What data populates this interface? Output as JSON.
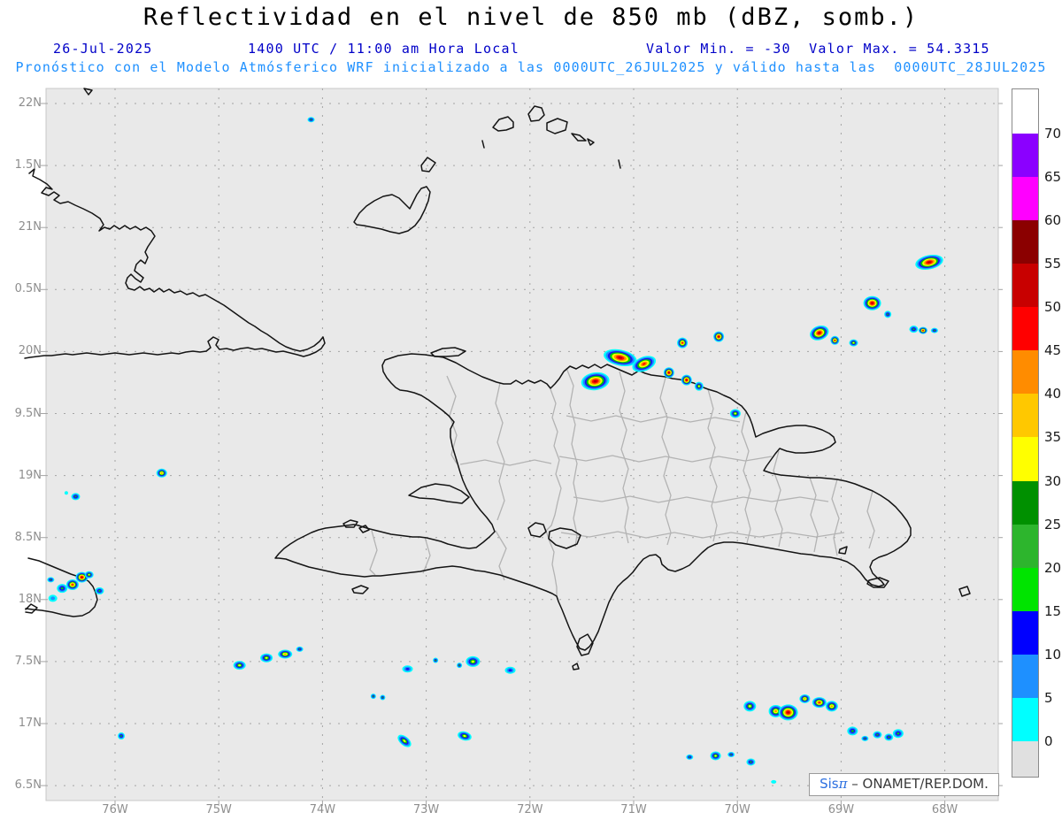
{
  "header": {
    "title": "Reflectividad en el nivel de 850 mb (dBZ, somb.)",
    "date": "26-Jul-2025",
    "time": "1400 UTC / 11:00 am Hora Local",
    "minmax": "Valor Min. = -30  Valor Max. = 54.3315",
    "forecast_line": "Pronóstico con el Modelo Atmósferico WRF inicializado a las 0000UTC_26JUL2025 y válido hasta las  0000UTC_28JUL2025"
  },
  "watermark": {
    "brand": "Sis",
    "pi": "π",
    "org": " – ONAMET/REP.DOM."
  },
  "chart_data": {
    "type": "heatmap",
    "title": "Reflectividad en el nivel de 850 mb (dBZ, somb.)",
    "units": "dBZ",
    "level": "850 mb",
    "value_min": -30,
    "value_max": 54.3315,
    "x_axis": {
      "values": [
        76,
        75,
        74,
        73,
        72,
        71,
        70,
        69,
        68
      ],
      "labels": [
        "76W",
        "75W",
        "74W",
        "73W",
        "72W",
        "71W",
        "70W",
        "69W",
        "68W"
      ]
    },
    "y_axis": {
      "values": [
        22,
        21.5,
        21,
        20.5,
        20,
        19.5,
        19,
        18.5,
        18,
        17.5,
        17,
        16.5
      ],
      "labels": [
        "22N",
        "1.5N",
        "21N",
        "0.5N",
        "20N",
        "9.5N",
        "19N",
        "8.5N",
        "18N",
        "7.5N",
        "17N",
        "6.5N"
      ]
    },
    "colorbar": {
      "tick_labels": [
        "70",
        "65",
        "60",
        "55",
        "50",
        "45",
        "40",
        "35",
        "30",
        "25",
        "20",
        "15",
        "10",
        "5",
        "0"
      ],
      "top_color": "#FFFFFF",
      "bottom_color": "#E0E0E0",
      "segment_colors_top_to_bottom": [
        "#8B00FF",
        "#FF00FF",
        "#8B0000",
        "#C80000",
        "#FF0000",
        "#FF8C00",
        "#FFC800",
        "#FFFF00",
        "#009000",
        "#2DB52D",
        "#00E400",
        "#0000FF",
        "#1E90FF",
        "#00FFFF"
      ]
    },
    "grid": {
      "lat_step_deg": 0.5,
      "lon_step_deg": 1,
      "style": "dashed-gray"
    },
    "cells_format": [
      "lon_w",
      "lat_n",
      "dbz",
      "rx_px",
      "ry_px",
      "rot_deg"
    ],
    "cells": [
      [
        74.11,
        21.87,
        18,
        4,
        3,
        0
      ],
      [
        68.15,
        20.72,
        52,
        16,
        8,
        -12
      ],
      [
        68.7,
        20.39,
        52,
        10,
        8,
        0
      ],
      [
        68.55,
        20.3,
        20,
        4,
        4,
        0
      ],
      [
        69.21,
        20.15,
        52,
        11,
        8,
        -20
      ],
      [
        69.06,
        20.09,
        47,
        5,
        5,
        0
      ],
      [
        68.88,
        20.07,
        33,
        5,
        4,
        0
      ],
      [
        68.3,
        20.18,
        25,
        5,
        4,
        0
      ],
      [
        68.21,
        20.17,
        47,
        5,
        4,
        0
      ],
      [
        68.1,
        20.17,
        22,
        4,
        3,
        0
      ],
      [
        71.13,
        19.95,
        52,
        19,
        9,
        12
      ],
      [
        70.9,
        19.9,
        47,
        14,
        8,
        -22
      ],
      [
        71.37,
        19.76,
        52,
        16,
        10,
        -8
      ],
      [
        70.66,
        19.83,
        50,
        6,
        6,
        0
      ],
      [
        70.49,
        19.77,
        50,
        6,
        6,
        0
      ],
      [
        70.37,
        19.72,
        33,
        5,
        5,
        0
      ],
      [
        70.18,
        20.12,
        50,
        6,
        6,
        0
      ],
      [
        70.53,
        20.07,
        45,
        6,
        6,
        0
      ],
      [
        70.02,
        19.5,
        33,
        6,
        5,
        0
      ],
      [
        75.55,
        19.02,
        42,
        6,
        5,
        0
      ],
      [
        76.38,
        18.83,
        25,
        5,
        4,
        0
      ],
      [
        76.47,
        18.86,
        5,
        2,
        2,
        0
      ],
      [
        76.32,
        18.18,
        50,
        7,
        6,
        0
      ],
      [
        76.41,
        18.12,
        45,
        7,
        6,
        0
      ],
      [
        76.51,
        18.09,
        25,
        6,
        5,
        0
      ],
      [
        76.6,
        18.01,
        10,
        5,
        4,
        0
      ],
      [
        76.25,
        18.2,
        33,
        5,
        4,
        0
      ],
      [
        76.15,
        18.07,
        20,
        5,
        4,
        0
      ],
      [
        76.62,
        18.16,
        20,
        4,
        3,
        0
      ],
      [
        74.8,
        17.47,
        33,
        7,
        5,
        0
      ],
      [
        74.54,
        17.53,
        33,
        7,
        5,
        0
      ],
      [
        74.36,
        17.56,
        42,
        8,
        5,
        0
      ],
      [
        74.22,
        17.6,
        20,
        4,
        3,
        0
      ],
      [
        73.18,
        17.44,
        14,
        6,
        4,
        0
      ],
      [
        72.91,
        17.51,
        18,
        3,
        3,
        0
      ],
      [
        72.68,
        17.47,
        18,
        3,
        3,
        0
      ],
      [
        72.55,
        17.5,
        33,
        8,
        6,
        0
      ],
      [
        72.19,
        17.43,
        14,
        6,
        4,
        0
      ],
      [
        73.51,
        17.22,
        18,
        3,
        3,
        0
      ],
      [
        73.42,
        17.21,
        18,
        3,
        3,
        0
      ],
      [
        73.21,
        16.86,
        30,
        9,
        5,
        40
      ],
      [
        72.63,
        16.9,
        33,
        8,
        5,
        15
      ],
      [
        75.94,
        16.9,
        20,
        4,
        4,
        0
      ],
      [
        69.88,
        17.14,
        33,
        7,
        6,
        0
      ],
      [
        69.63,
        17.1,
        42,
        8,
        7,
        0
      ],
      [
        69.51,
        17.09,
        52,
        11,
        9,
        0
      ],
      [
        69.35,
        17.2,
        42,
        6,
        5,
        0
      ],
      [
        69.21,
        17.17,
        47,
        8,
        6,
        0
      ],
      [
        69.09,
        17.14,
        40,
        7,
        6,
        0
      ],
      [
        68.89,
        16.94,
        22,
        6,
        5,
        0
      ],
      [
        68.77,
        16.88,
        20,
        4,
        3,
        0
      ],
      [
        68.65,
        16.91,
        22,
        5,
        4,
        0
      ],
      [
        68.54,
        16.89,
        22,
        5,
        4,
        0
      ],
      [
        68.45,
        16.92,
        22,
        6,
        5,
        0
      ],
      [
        70.46,
        16.73,
        18,
        4,
        3,
        0
      ],
      [
        70.21,
        16.74,
        33,
        6,
        5,
        0
      ],
      [
        70.06,
        16.75,
        18,
        4,
        3,
        0
      ],
      [
        69.87,
        16.69,
        20,
        5,
        4,
        0
      ],
      [
        69.65,
        16.53,
        5,
        3,
        2,
        0
      ]
    ]
  }
}
